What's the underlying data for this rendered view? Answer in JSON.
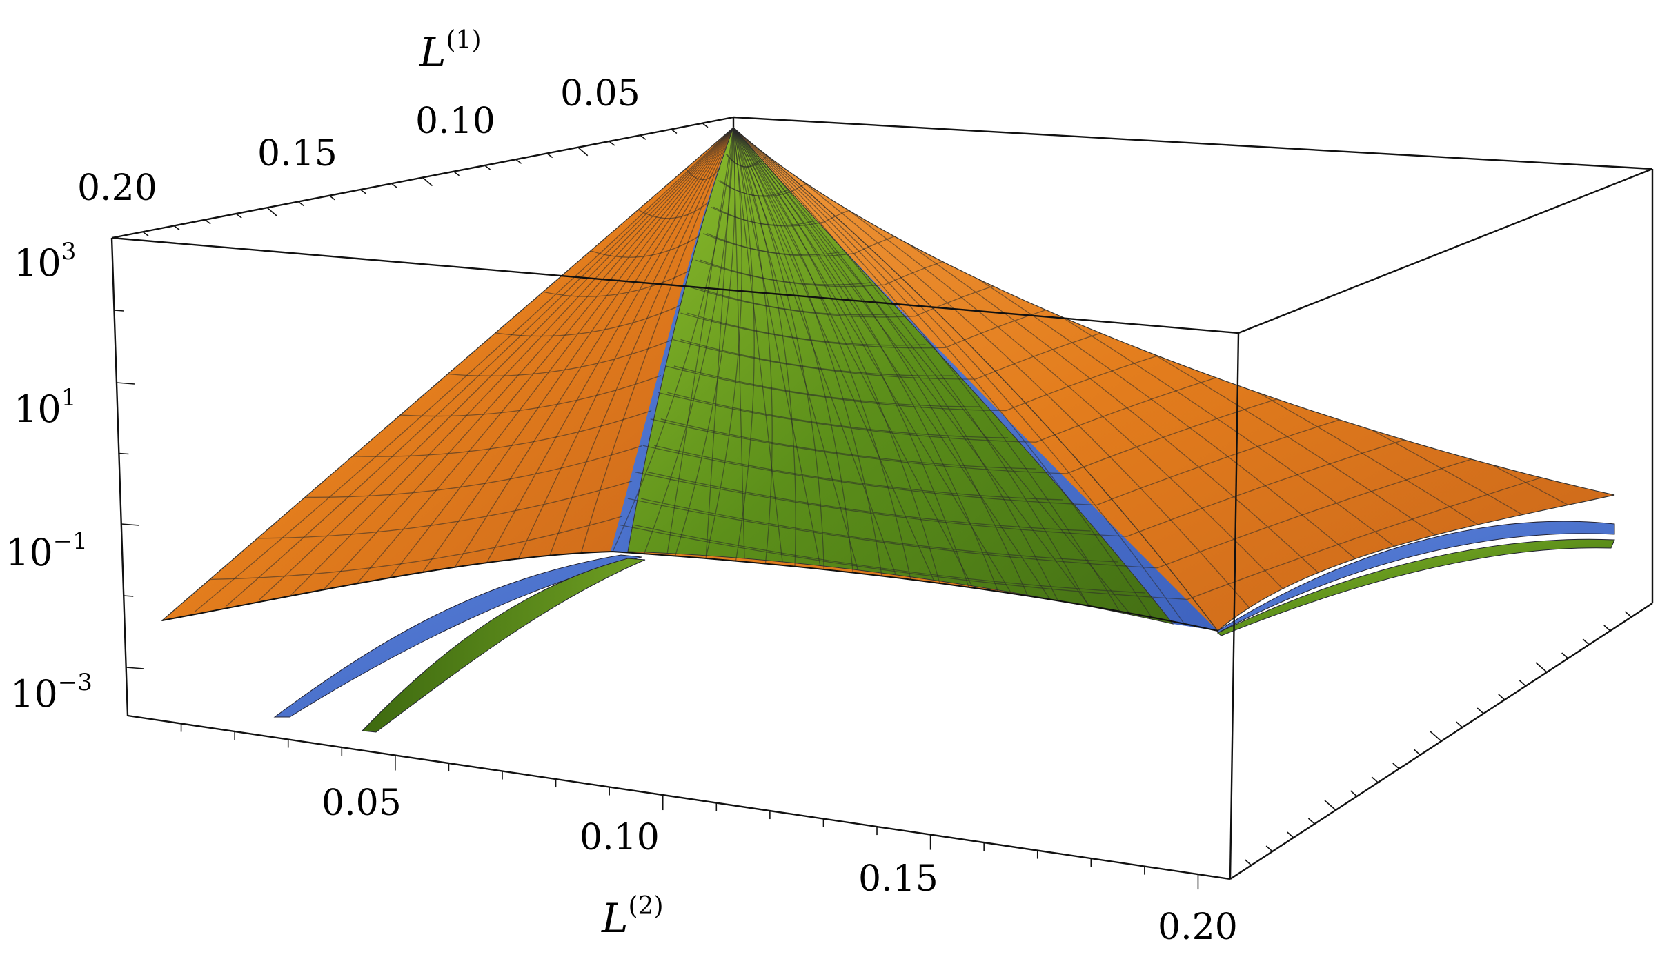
{
  "chart_data": {
    "type": "surface3d",
    "xlabel": "L",
    "xlabel_sup": "(2)",
    "ylabel": "L",
    "ylabel_sup": "(1)",
    "zscale": "log",
    "xlim": [
      0.0,
      0.2
    ],
    "ylim": [
      0.0,
      0.2
    ],
    "zlim": [
      0.001,
      1000
    ],
    "x_ticks": [
      "0.05",
      "0.10",
      "0.15",
      "0.20"
    ],
    "x_tick_values": [
      0.05,
      0.1,
      0.15,
      0.2
    ],
    "y_ticks": [
      "0.05",
      "0.10",
      "0.15",
      "0.20"
    ],
    "y_tick_values": [
      0.05,
      0.1,
      0.15,
      0.2
    ],
    "z_ticks": [
      {
        "base": "10",
        "exp": "3",
        "value": 1000
      },
      {
        "base": "10",
        "exp": "1",
        "value": 10
      },
      {
        "base": "10",
        "exp": "−1",
        "value": 0.1
      },
      {
        "base": "10",
        "exp": "−3",
        "value": 0.001
      }
    ],
    "series": [
      {
        "color": "#E37D1D",
        "peak": 600,
        "min_value": 0.01
      },
      {
        "color": "#4A72D0",
        "peak": 1000,
        "min_value": 0.004
      },
      {
        "color": "#5C8F1A",
        "peak": 1100,
        "min_value": 0.002
      }
    ],
    "mesh": true
  },
  "colors": {
    "orange": "#E37D1D",
    "blue": "#4A72D0",
    "green": "#5C8F1A",
    "box": "#111111"
  }
}
